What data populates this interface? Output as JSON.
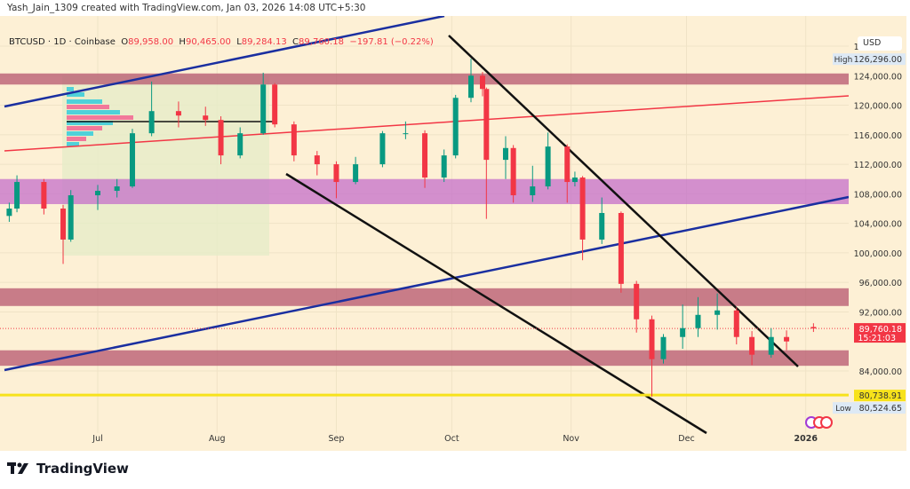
{
  "credit": "Yash_Jain_1309 created with TradingView.com, Jan 03, 2026 14:08 UTC+5:30",
  "legend": {
    "symbol": "BTCUSD · 1D · Coinbase",
    "o": "89,958.00",
    "h": "90,465.00",
    "l": "89,284.13",
    "c": "89,760.18",
    "chg": "−197.81 (−0.22%)"
  },
  "currency": "USD",
  "logo": "TradingView",
  "colors": {
    "up": "#089981",
    "down": "#f23645",
    "bg": "#fdf0d5",
    "zone_red": "#b5566e",
    "zone_purple": "#c46fc9",
    "yellow": "#f7e21b",
    "blue": "#1a2fa0",
    "red_line": "#f23645"
  },
  "chart_data": {
    "type": "candlestick",
    "ylim": [
      78000,
      130000
    ],
    "y_ticks": [
      "128,000.00",
      "124,000.00",
      "120,000.00",
      "116,000.00",
      "112,000.00",
      "108,000.00",
      "104,000.00",
      "100,000.00",
      "96,000.00",
      "92,000.00",
      "84,000.00"
    ],
    "y_tick_values": [
      128000,
      124000,
      120000,
      116000,
      112000,
      108000,
      104000,
      100000,
      96000,
      92000,
      84000
    ],
    "x_ticks": [
      {
        "label": "Jul",
        "date": "2025-07-01"
      },
      {
        "label": "Aug",
        "date": "2025-08-01"
      },
      {
        "label": "Sep",
        "date": "2025-09-01"
      },
      {
        "label": "Oct",
        "date": "2025-10-01"
      },
      {
        "label": "Nov",
        "date": "2025-11-01"
      },
      {
        "label": "Dec",
        "date": "2025-12-01"
      },
      {
        "label": "2026",
        "date": "2026-01-01"
      }
    ],
    "candles": [
      [
        "2025-06-08",
        105000,
        106800,
        104200,
        106000
      ],
      [
        "2025-06-10",
        106000,
        110500,
        105500,
        109600
      ],
      [
        "2025-06-17",
        109600,
        110000,
        105200,
        106000
      ],
      [
        "2025-06-22",
        106000,
        106500,
        98500,
        101800
      ],
      [
        "2025-06-24",
        101800,
        108500,
        101500,
        107800
      ],
      [
        "2025-07-01",
        107800,
        109200,
        105800,
        108400
      ],
      [
        "2025-07-06",
        108400,
        110000,
        107500,
        109000
      ],
      [
        "2025-07-10",
        109000,
        116800,
        108800,
        116200
      ],
      [
        "2025-07-15",
        116200,
        123200,
        115800,
        119200
      ],
      [
        "2025-07-22",
        119200,
        120500,
        117000,
        118600
      ],
      [
        "2025-07-29",
        118600,
        119800,
        117200,
        118000
      ],
      [
        "2025-08-02",
        118000,
        118500,
        112000,
        113200
      ],
      [
        "2025-08-07",
        113200,
        117000,
        112800,
        116200
      ],
      [
        "2025-08-13",
        116200,
        124400,
        116000,
        122800
      ],
      [
        "2025-08-16",
        122800,
        123000,
        117000,
        117400
      ],
      [
        "2025-08-21",
        117400,
        117800,
        112400,
        113200
      ],
      [
        "2025-08-27",
        113200,
        113800,
        110500,
        112000
      ],
      [
        "2025-09-01",
        112000,
        112400,
        107400,
        109600
      ],
      [
        "2025-09-06",
        109600,
        113000,
        109300,
        112000
      ],
      [
        "2025-09-13",
        112000,
        116500,
        111600,
        116200
      ],
      [
        "2025-09-19",
        116200,
        117800,
        115400,
        116200
      ],
      [
        "2025-09-24",
        116200,
        116600,
        108800,
        110200
      ],
      [
        "2025-09-29",
        110200,
        114000,
        109600,
        113200
      ],
      [
        "2025-10-02",
        113200,
        121400,
        112800,
        121000
      ],
      [
        "2025-10-06",
        121000,
        126296,
        120400,
        124000
      ],
      [
        "2025-10-09",
        124000,
        124500,
        121200,
        122200
      ],
      [
        "2025-10-10",
        122200,
        122400,
        104600,
        112600
      ],
      [
        "2025-10-15",
        112600,
        115800,
        110000,
        114200
      ],
      [
        "2025-10-17",
        114200,
        114600,
        106800,
        107800
      ],
      [
        "2025-10-22",
        107800,
        111800,
        106900,
        109000
      ],
      [
        "2025-10-26",
        109000,
        116300,
        108600,
        114400
      ],
      [
        "2025-10-31",
        114400,
        114700,
        106800,
        109600
      ],
      [
        "2025-11-02",
        109600,
        111000,
        109000,
        110200
      ],
      [
        "2025-11-04",
        110200,
        110400,
        99000,
        101800
      ],
      [
        "2025-11-09",
        101800,
        107500,
        101200,
        105400
      ],
      [
        "2025-11-14",
        105400,
        105600,
        94600,
        95800
      ],
      [
        "2025-11-18",
        95800,
        96200,
        89200,
        91000
      ],
      [
        "2025-11-22",
        91000,
        91500,
        80524.65,
        85600
      ],
      [
        "2025-11-25",
        85600,
        89000,
        85000,
        88600
      ],
      [
        "2025-11-30",
        88600,
        93000,
        87000,
        89800
      ],
      [
        "2025-12-04",
        89800,
        94000,
        88600,
        91600
      ],
      [
        "2025-12-09",
        91600,
        94500,
        89600,
        92200
      ],
      [
        "2025-12-14",
        92200,
        92600,
        87600,
        88600
      ],
      [
        "2025-12-18",
        88600,
        89400,
        84800,
        86200
      ],
      [
        "2025-12-23",
        86200,
        89800,
        85800,
        88600
      ],
      [
        "2025-12-27",
        88600,
        89500,
        86800,
        88000
      ],
      [
        "2026-01-03",
        89958,
        90465,
        89284.13,
        89760.18
      ]
    ],
    "zones": [
      {
        "top": 124300,
        "bottom": 122800,
        "color": "zone_red"
      },
      {
        "top": 110000,
        "bottom": 106600,
        "color": "zone_purple"
      },
      {
        "top": 95200,
        "bottom": 92800,
        "color": "zone_red"
      },
      {
        "top": 86800,
        "bottom": 84700,
        "color": "zone_red"
      }
    ],
    "price_labels": [
      {
        "text": "High",
        "value": "126,296.00",
        "price": 126296
      },
      {
        "text": "",
        "value": "89,760.18",
        "sub": "15:21:03",
        "price": 89760.18
      },
      {
        "text": "",
        "value": "80,738.91",
        "price": 80738.91
      },
      {
        "text": "Low",
        "value": "80,524.65",
        "price": 80524.65
      }
    ]
  }
}
